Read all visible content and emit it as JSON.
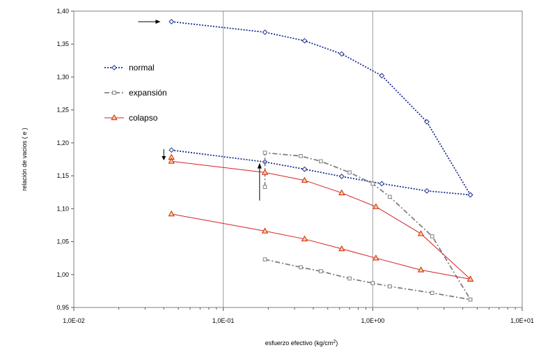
{
  "chart_data": {
    "type": "line",
    "title": "",
    "xlabel": "esfuerzo efectivo (kg/cm2)",
    "ylabel": "relación de vacios ( e )",
    "x_scale": "log",
    "xlim": [
      0.01,
      10
    ],
    "ylim": [
      0.95,
      1.4
    ],
    "x_ticks": [
      0.01,
      0.1,
      1,
      10
    ],
    "x_tick_labels": [
      "1,0E-02",
      "1,0E-01",
      "1,0E+00",
      "1,0E+01"
    ],
    "y_ticks": [
      0.95,
      1.0,
      1.05,
      1.1,
      1.15,
      1.2,
      1.25,
      1.3,
      1.35,
      1.4
    ],
    "y_tick_labels": [
      "0,95",
      "1,00",
      "1,05",
      "1,10",
      "1,15",
      "1,20",
      "1,25",
      "1,30",
      "1,35",
      "1,40"
    ],
    "grid": "vertical-major",
    "legend_position": "upper-left",
    "series": [
      {
        "name": "normal",
        "color": "#1c2f8c",
        "marker": "diamond",
        "line_style": "dotted",
        "segments": [
          [
            [
              0.045,
              1.384
            ],
            [
              0.19,
              1.368
            ],
            [
              0.35,
              1.355
            ],
            [
              0.62,
              1.335
            ],
            [
              1.15,
              1.302
            ],
            [
              2.3,
              1.232
            ],
            [
              4.5,
              1.121
            ]
          ],
          [
            [
              0.045,
              1.189
            ],
            [
              0.19,
              1.171
            ],
            [
              0.35,
              1.16
            ],
            [
              0.62,
              1.149
            ],
            [
              1.15,
              1.138
            ],
            [
              2.3,
              1.127
            ],
            [
              4.5,
              1.121
            ]
          ]
        ]
      },
      {
        "name": "expansión",
        "color": "#808080",
        "marker": "square",
        "line_style": "dashdot",
        "segments": [
          [
            [
              0.19,
              1.133
            ],
            [
              0.19,
              1.185
            ],
            [
              0.33,
              1.18
            ],
            [
              0.45,
              1.172
            ],
            [
              0.7,
              1.155
            ],
            [
              1.0,
              1.138
            ],
            [
              1.3,
              1.118
            ],
            [
              2.5,
              1.058
            ],
            [
              4.5,
              0.962
            ]
          ],
          [
            [
              0.19,
              1.023
            ],
            [
              0.33,
              1.011
            ],
            [
              0.45,
              1.005
            ],
            [
              0.7,
              0.994
            ],
            [
              1.0,
              0.987
            ],
            [
              1.3,
              0.982
            ],
            [
              2.5,
              0.972
            ],
            [
              4.5,
              0.962
            ]
          ]
        ]
      },
      {
        "name": "colapso",
        "color": "#d42020",
        "marker": "triangle",
        "line_style": "solid",
        "segments": [
          [
            [
              0.045,
              1.178
            ],
            [
              0.045,
              1.172
            ],
            [
              0.19,
              1.155
            ],
            [
              0.35,
              1.143
            ],
            [
              0.62,
              1.124
            ],
            [
              1.05,
              1.103
            ],
            [
              2.1,
              1.062
            ],
            [
              4.5,
              0.993
            ]
          ],
          [
            [
              0.045,
              1.092
            ],
            [
              0.19,
              1.066
            ],
            [
              0.35,
              1.054
            ],
            [
              0.62,
              1.039
            ],
            [
              1.05,
              1.025
            ],
            [
              2.1,
              1.007
            ],
            [
              4.5,
              0.993
            ]
          ]
        ]
      }
    ],
    "annotations": [
      {
        "type": "arrow",
        "direction": "right",
        "x": 0.038,
        "y": 1.384
      },
      {
        "type": "arrow",
        "direction": "down",
        "x": 0.04,
        "y": 1.183
      },
      {
        "type": "arrow",
        "direction": "up",
        "x": 0.175,
        "y": 1.142
      }
    ]
  }
}
